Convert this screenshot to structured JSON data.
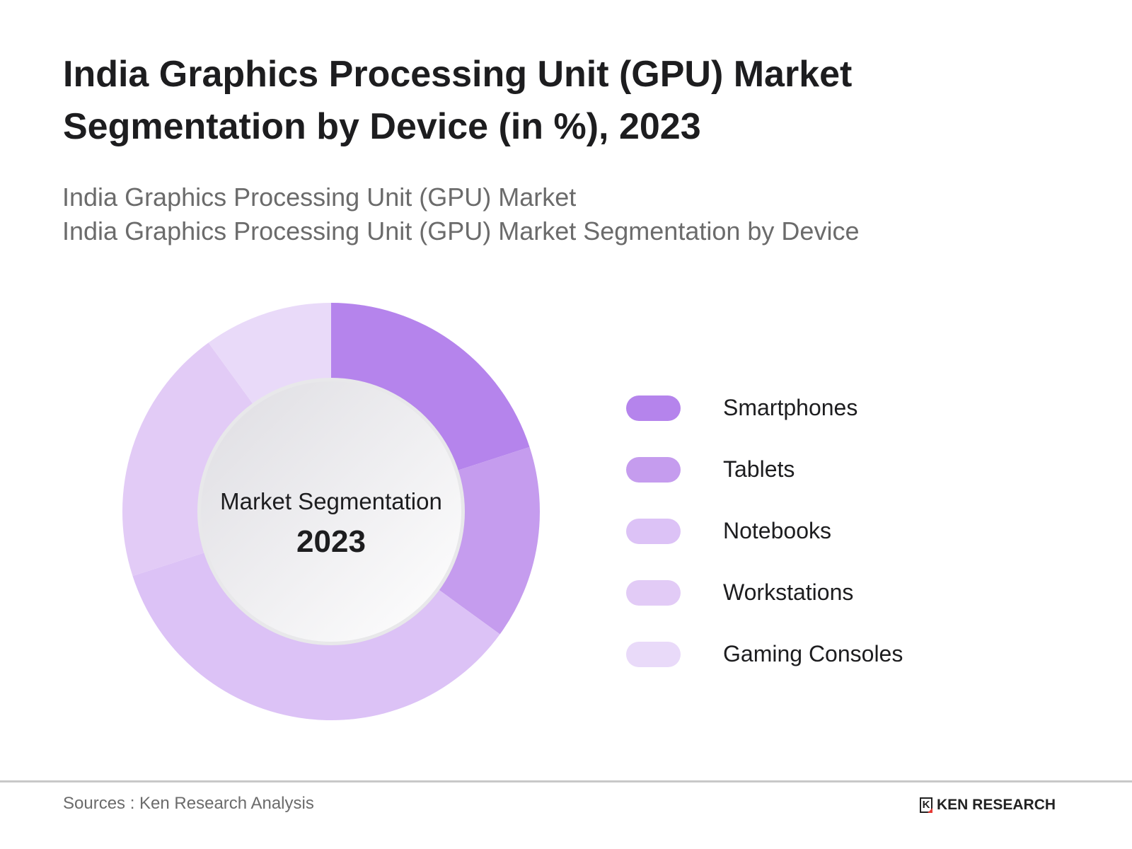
{
  "chart_data": {
    "type": "pie",
    "title": "India Graphics Processing Unit (GPU) Market Segmentation by Device (in %), 2023",
    "subtitle": [
      "India Graphics Processing Unit (GPU) Market",
      "India Graphics Processing Unit (GPU) Market Segmentation by Device"
    ],
    "center_label": "Market Segmentation",
    "center_year": "2023",
    "categories": [
      "Smartphones",
      "Tablets",
      "Notebooks",
      "Workstations",
      "Gaming Consoles"
    ],
    "values": [
      20,
      15,
      35,
      20,
      10
    ],
    "colors": [
      "#b584ec",
      "#c59cee",
      "#dcc2f6",
      "#e2cbf6",
      "#e9daf9"
    ],
    "donut": true,
    "legend_position": "right"
  },
  "footer": {
    "source": "Sources : Ken Research Analysis",
    "logo": "KEN RESEARCH",
    "logo_mark": "K"
  }
}
